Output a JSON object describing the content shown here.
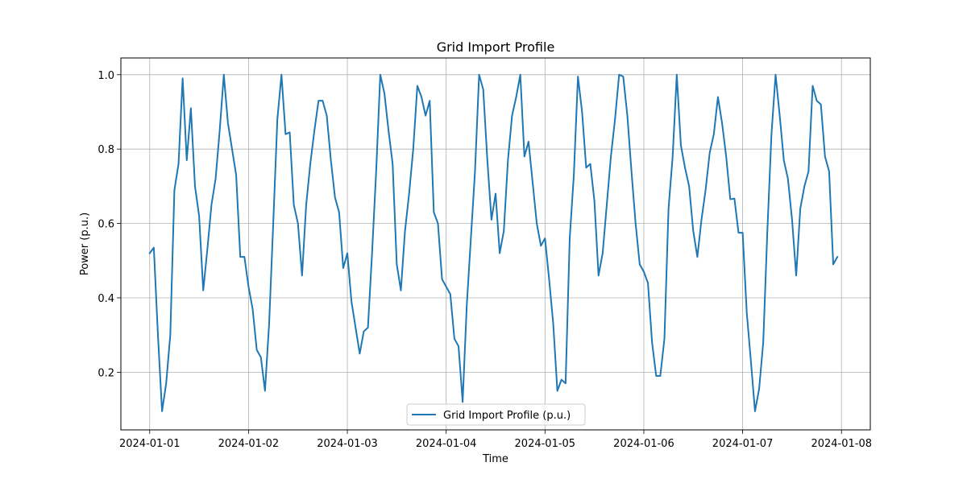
{
  "chart_data": {
    "type": "line",
    "title": "Grid Import Profile",
    "xlabel": "Time",
    "ylabel": "Power (p.u.)",
    "x_start": "2024-01-01 00:00",
    "x_step_hours": 1,
    "xlim": [
      "2024-01-01 -07:00",
      "2024-01-08 07:00"
    ],
    "ylim": [
      0.045,
      1.045
    ],
    "x_ticks": [
      "2024-01-01",
      "2024-01-02",
      "2024-01-03",
      "2024-01-04",
      "2024-01-05",
      "2024-01-06",
      "2024-01-07",
      "2024-01-08"
    ],
    "y_ticks": [
      "0.2",
      "0.4",
      "0.6",
      "0.8",
      "1.0"
    ],
    "y_tick_values": [
      0.2,
      0.4,
      0.6,
      0.8,
      1.0
    ],
    "grid": true,
    "legend_position": "lower center",
    "series": [
      {
        "name": "Grid Import Profile (p.u.)",
        "color": "#1f77b4",
        "values": [
          0.52,
          0.535,
          0.3,
          0.095,
          0.17,
          0.3,
          0.69,
          0.76,
          0.99,
          0.77,
          0.91,
          0.7,
          0.62,
          0.42,
          0.53,
          0.65,
          0.72,
          0.85,
          1.0,
          0.87,
          0.8,
          0.73,
          0.51,
          0.51,
          0.43,
          0.37,
          0.26,
          0.24,
          0.15,
          0.33,
          0.6,
          0.88,
          1.0,
          0.84,
          0.845,
          0.65,
          0.6,
          0.46,
          0.65,
          0.76,
          0.85,
          0.93,
          0.93,
          0.89,
          0.77,
          0.67,
          0.63,
          0.48,
          0.52,
          0.39,
          0.32,
          0.25,
          0.31,
          0.32,
          0.52,
          0.74,
          1.0,
          0.95,
          0.85,
          0.76,
          0.49,
          0.42,
          0.58,
          0.68,
          0.8,
          0.97,
          0.94,
          0.89,
          0.93,
          0.63,
          0.6,
          0.45,
          0.43,
          0.41,
          0.29,
          0.27,
          0.12,
          0.38,
          0.56,
          0.74,
          1.0,
          0.96,
          0.77,
          0.61,
          0.68,
          0.52,
          0.58,
          0.77,
          0.89,
          0.94,
          1.0,
          0.78,
          0.82,
          0.71,
          0.6,
          0.54,
          0.56,
          0.45,
          0.33,
          0.15,
          0.18,
          0.17,
          0.56,
          0.73,
          0.995,
          0.9,
          0.75,
          0.76,
          0.66,
          0.46,
          0.52,
          0.65,
          0.78,
          0.88,
          1.0,
          0.995,
          0.89,
          0.74,
          0.6,
          0.49,
          0.47,
          0.44,
          0.28,
          0.19,
          0.19,
          0.29,
          0.64,
          0.78,
          1.0,
          0.81,
          0.75,
          0.7,
          0.58,
          0.51,
          0.61,
          0.69,
          0.79,
          0.84,
          0.94,
          0.87,
          0.78,
          0.665,
          0.667,
          0.575,
          0.575,
          0.36,
          0.23,
          0.095,
          0.155,
          0.28,
          0.58,
          0.84,
          1.0,
          0.89,
          0.77,
          0.72,
          0.61,
          0.46,
          0.64,
          0.7,
          0.74,
          0.97,
          0.93,
          0.92,
          0.78,
          0.74,
          0.49,
          0.51
        ]
      }
    ]
  }
}
